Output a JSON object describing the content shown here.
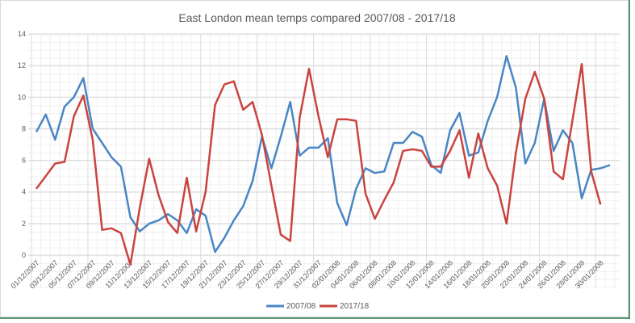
{
  "chart_data": {
    "type": "line",
    "title": "East London mean temps compared 2007/08 - 2017/18",
    "xlabel": "",
    "ylabel": "",
    "ylim": [
      0,
      14
    ],
    "y_ticks": [
      0,
      2,
      4,
      6,
      8,
      10,
      12,
      14
    ],
    "grid": true,
    "legend_position": "bottom",
    "x_tick_labels": [
      "01/12/2007",
      "03/12/2007",
      "05/12/2007",
      "07/12/2007",
      "09/12/2007",
      "11/12/2007",
      "13/12/2007",
      "15/12/2007",
      "17/12/2007",
      "19/12/2007",
      "21/12/2007",
      "23/12/2007",
      "25/12/2007",
      "27/12/2007",
      "29/12/2007",
      "31/12/2007",
      "02/01/2008",
      "04/01/2008",
      "06/01/2008",
      "08/01/2008",
      "10/01/2008",
      "12/01/2008",
      "14/01/2008",
      "16/01/2008",
      "18/01/2008",
      "20/01/2008",
      "22/01/2008",
      "24/01/2008",
      "26/01/2008",
      "28/01/2008",
      "30/01/2008"
    ],
    "series": [
      {
        "name": "2007/08",
        "color": "#4a86c5",
        "values": [
          7.8,
          8.9,
          7.3,
          9.4,
          10.0,
          11.2,
          8.0,
          7.1,
          6.2,
          5.6,
          2.4,
          1.5,
          2.0,
          2.2,
          2.6,
          2.2,
          1.4,
          2.9,
          2.5,
          0.2,
          1.1,
          2.2,
          3.1,
          4.7,
          7.5,
          5.5,
          7.5,
          9.7,
          6.3,
          6.8,
          6.8,
          7.4,
          3.3,
          1.9,
          4.2,
          5.5,
          5.2,
          5.3,
          7.1,
          7.1,
          7.8,
          7.5,
          5.7,
          5.2,
          7.9,
          9.0,
          6.3,
          6.5,
          8.5,
          10.0,
          12.6,
          10.6,
          5.8,
          7.1,
          9.9,
          6.6,
          7.9,
          7.1,
          3.6,
          5.4,
          5.5,
          5.7
        ]
      },
      {
        "name": "2017/18",
        "color": "#c9443f",
        "values": [
          4.2,
          5.0,
          5.8,
          5.9,
          8.8,
          10.1,
          7.3,
          1.6,
          1.7,
          1.4,
          -0.6,
          3.0,
          6.1,
          3.8,
          2.1,
          1.4,
          4.9,
          1.5,
          4.0,
          9.5,
          10.8,
          11.0,
          9.2,
          9.7,
          7.6,
          4.4,
          1.3,
          0.9,
          8.7,
          11.8,
          8.8,
          6.2,
          8.6,
          8.6,
          8.5,
          3.9,
          2.3,
          3.5,
          4.6,
          6.6,
          6.7,
          6.6,
          5.6,
          5.6,
          6.6,
          7.9,
          4.9,
          7.7,
          5.5,
          4.4,
          2.0,
          6.5,
          9.9,
          11.6,
          9.9,
          5.3,
          4.8,
          8.5,
          12.1,
          5.3,
          3.2,
          null
        ]
      }
    ]
  }
}
